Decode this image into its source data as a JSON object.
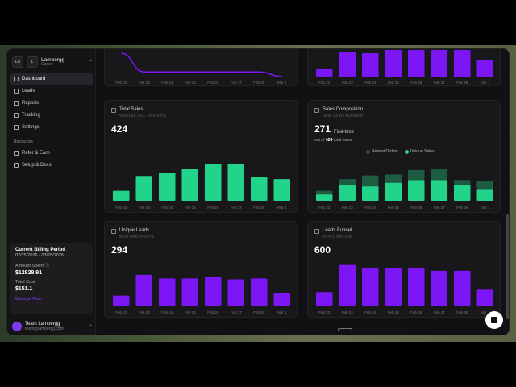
{
  "org": {
    "initials": "LO",
    "short": "L",
    "name": "Lambergg",
    "role": "Owner"
  },
  "nav": [
    {
      "label": "Dashboard",
      "active": true,
      "icon": "grid-icon"
    },
    {
      "label": "Leads",
      "active": false,
      "icon": "users-icon"
    },
    {
      "label": "Reports",
      "active": false,
      "icon": "document-icon"
    },
    {
      "label": "Tracking",
      "active": false,
      "icon": "code-icon"
    },
    {
      "label": "Settings",
      "active": false,
      "icon": "gear-icon"
    }
  ],
  "resources": {
    "label": "Resources",
    "items": [
      {
        "label": "Refer & Earn",
        "icon": "gift-icon"
      },
      {
        "label": "Setup & Docs",
        "icon": "book-icon"
      }
    ]
  },
  "billing": {
    "title": "Current Billing Period",
    "period": "02/25/2026 - 03/25/2026",
    "amount_label": "Amount Spent",
    "amount": "$12828.91",
    "total_label": "Total Cost",
    "total": "$151.1",
    "link": "Manage Plan"
  },
  "team": {
    "name": "Team Lambergg",
    "email": "team@lambergg.com"
  },
  "dates": [
    "Feb 22",
    "Feb 23",
    "Feb 24",
    "Feb 25",
    "Feb 26",
    "Feb 27",
    "Feb 28",
    "Mar 1"
  ],
  "colors": {
    "purple": "#7c16f5",
    "green": "#22d38a",
    "dark_green": "#1d5c40"
  },
  "cards": {
    "total_sales": {
      "title": "Total Sales",
      "subtitle": "VOLUME (ALL CREDITS)",
      "value": "424"
    },
    "sales_composition": {
      "title": "Sales Composition",
      "subtitle": "NEW VS RETURNING",
      "value": "271",
      "value_label": "First-time",
      "sub_prefix": "out of",
      "sub_value": "424",
      "sub_suffix": "total sales",
      "legend_a": "Repeat Orders",
      "legend_b": "Unique Sales"
    },
    "unique_leads": {
      "title": "Unique Leads",
      "subtitle": "NEW PROSPECTS",
      "value": "294"
    },
    "leads_funnel": {
      "title": "Leads Funnel",
      "subtitle": "TOTAL INFLOW",
      "value": "600"
    }
  },
  "chart_data": [
    {
      "type": "line",
      "name": "top-left",
      "x": [
        "Feb 22",
        "Feb 23",
        "Feb 24",
        "Feb 25",
        "Feb 26",
        "Feb 27",
        "Feb 28",
        "Mar 1"
      ],
      "values": [
        80,
        22,
        22,
        22,
        22,
        22,
        22,
        8
      ]
    },
    {
      "type": "bar",
      "name": "top-right",
      "categories": [
        "Feb 22",
        "Feb 23",
        "Feb 24",
        "Feb 25",
        "Feb 26",
        "Feb 27",
        "Feb 28",
        "Mar 1"
      ],
      "values": [
        25,
        80,
        75,
        85,
        85,
        85,
        85,
        55
      ]
    },
    {
      "type": "bar",
      "name": "total-sales",
      "categories": [
        "Feb 22",
        "Feb 23",
        "Feb 24",
        "Feb 25",
        "Feb 26",
        "Feb 27",
        "Feb 28",
        "Mar 1"
      ],
      "values": [
        22,
        55,
        62,
        70,
        82,
        82,
        52,
        48
      ]
    },
    {
      "type": "bar",
      "name": "sales-composition",
      "categories": [
        "Feb 22",
        "Feb 23",
        "Feb 24",
        "Feb 25",
        "Feb 26",
        "Feb 27",
        "Feb 28",
        "Mar 1"
      ],
      "series": [
        {
          "name": "Unique Sales",
          "values": [
            14,
            34,
            32,
            40,
            46,
            46,
            36,
            24
          ]
        },
        {
          "name": "Repeat Orders",
          "values": [
            8,
            14,
            24,
            18,
            22,
            24,
            10,
            20
          ]
        }
      ]
    },
    {
      "type": "bar",
      "name": "unique-leads",
      "categories": [
        "Feb 22",
        "Feb 23",
        "Feb 24",
        "Feb 25",
        "Feb 26",
        "Feb 27",
        "Feb 28",
        "Mar 1"
      ],
      "values": [
        22,
        68,
        60,
        60,
        63,
        58,
        60,
        28
      ]
    },
    {
      "type": "bar",
      "name": "leads-funnel",
      "categories": [
        "Feb 22",
        "Feb 23",
        "Feb 24",
        "Feb 25",
        "Feb 26",
        "Feb 27",
        "Feb 28",
        "Mar 1"
      ],
      "values": [
        30,
        90,
        83,
        83,
        83,
        77,
        77,
        35
      ]
    }
  ]
}
